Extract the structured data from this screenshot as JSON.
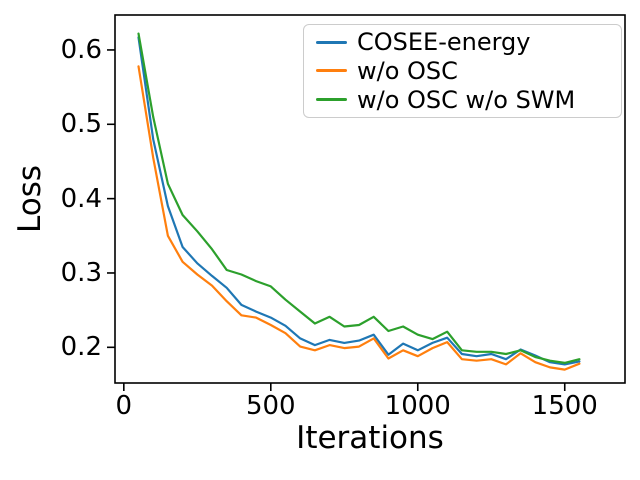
{
  "chart_data": {
    "type": "line",
    "title": "",
    "xlabel": "Iterations",
    "ylabel": "Loss",
    "x": [
      50,
      100,
      150,
      200,
      250,
      300,
      350,
      400,
      450,
      500,
      550,
      600,
      650,
      700,
      750,
      800,
      850,
      900,
      950,
      1000,
      1050,
      1100,
      1150,
      1200,
      1250,
      1300,
      1350,
      1400,
      1450,
      1500,
      1550
    ],
    "series": [
      {
        "name": "COSEE-energy",
        "color": "#1f77b4",
        "values": [
          0.617,
          0.48,
          0.39,
          0.335,
          0.313,
          0.296,
          0.28,
          0.257,
          0.248,
          0.24,
          0.229,
          0.212,
          0.203,
          0.21,
          0.206,
          0.209,
          0.217,
          0.19,
          0.205,
          0.196,
          0.206,
          0.213,
          0.191,
          0.188,
          0.191,
          0.184,
          0.197,
          0.189,
          0.18,
          0.177,
          0.181
        ]
      },
      {
        "name": "w/o OSC",
        "color": "#ff7f0e",
        "values": [
          0.578,
          0.455,
          0.35,
          0.315,
          0.298,
          0.283,
          0.262,
          0.243,
          0.24,
          0.23,
          0.219,
          0.201,
          0.196,
          0.203,
          0.199,
          0.201,
          0.212,
          0.185,
          0.196,
          0.188,
          0.199,
          0.207,
          0.184,
          0.182,
          0.184,
          0.177,
          0.192,
          0.18,
          0.173,
          0.17,
          0.178
        ]
      },
      {
        "name": "w/o OSC w/o SWM",
        "color": "#2ca02c",
        "values": [
          0.622,
          0.51,
          0.42,
          0.378,
          0.356,
          0.332,
          0.304,
          0.298,
          0.289,
          0.282,
          0.264,
          0.248,
          0.232,
          0.241,
          0.228,
          0.23,
          0.241,
          0.222,
          0.228,
          0.217,
          0.211,
          0.221,
          0.196,
          0.194,
          0.194,
          0.191,
          0.196,
          0.187,
          0.182,
          0.179,
          0.184
        ]
      }
    ],
    "xticks": [
      0,
      500,
      1000,
      1500
    ],
    "yticks": [
      0.2,
      0.3,
      0.4,
      0.5,
      0.6
    ],
    "xlim": [
      -30,
      1705
    ],
    "ylim": [
      0.152,
      0.647
    ],
    "grid": false,
    "legend_position": "upper right",
    "axis_color": "#000000"
  }
}
